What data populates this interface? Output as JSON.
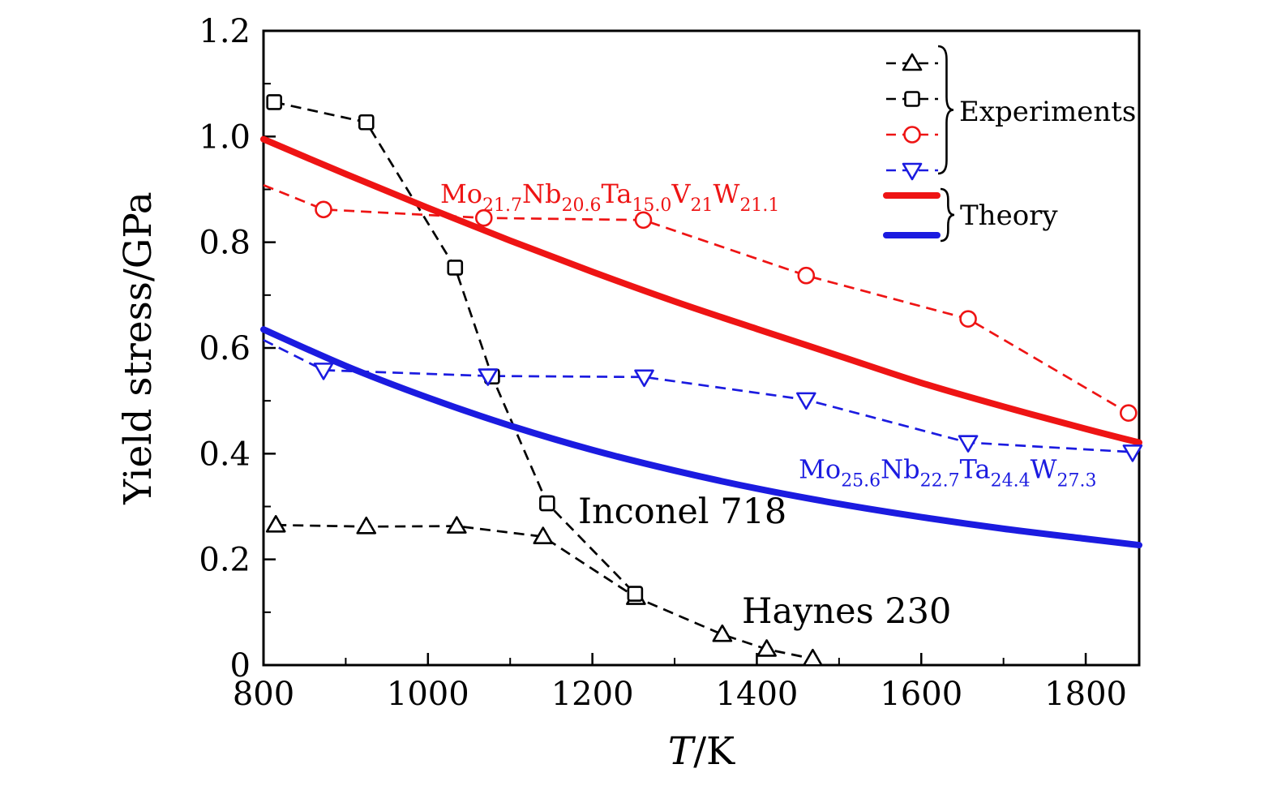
{
  "figure": {
    "background": "#ffffff",
    "axis_color": "#000000"
  },
  "chart_data": {
    "type": "line",
    "title": "",
    "xlabel_italic": "T",
    "xlabel_rest": "/K",
    "ylabel": "Yield stress/GPa",
    "xlim": [
      800,
      1865
    ],
    "ylim": [
      0,
      1.2
    ],
    "x_ticks": [
      800,
      1000,
      1200,
      1400,
      1600,
      1800
    ],
    "x_minor_step": 100,
    "y_ticks": [
      0,
      0.2,
      0.4,
      0.6,
      0.8,
      1.0,
      1.2
    ],
    "y_tick_labels": [
      "0",
      "0.2",
      "0.4",
      "0.6",
      "0.8",
      "1.0",
      "1.2"
    ],
    "y_minor_step": 0.1,
    "grid": false,
    "legend_position": "top-right",
    "colors": {
      "red": "#ee1414",
      "blue": "#1b1be0",
      "black": "#000000"
    },
    "series": [
      {
        "id": "haynes-230-experiment",
        "label": "Haynes 230",
        "role": "experiment",
        "color": "black",
        "line": "dashed",
        "marker": "triangle-up",
        "markers_from": 0,
        "points": [
          [
            815,
            0.265
          ],
          [
            925,
            0.262
          ],
          [
            1035,
            0.263
          ],
          [
            1140,
            0.243
          ],
          [
            1253,
            0.128
          ],
          [
            1358,
            0.058
          ],
          [
            1412,
            0.03
          ],
          [
            1468,
            0.012
          ]
        ]
      },
      {
        "id": "inconel-718-experiment",
        "label": "Inconel 718",
        "role": "experiment",
        "color": "black",
        "line": "dashed",
        "marker": "square",
        "markers_from": 0,
        "points": [
          [
            813,
            1.065
          ],
          [
            925,
            1.027
          ],
          [
            1033,
            0.752
          ],
          [
            1078,
            0.546
          ],
          [
            1145,
            0.306
          ],
          [
            1252,
            0.135
          ]
        ]
      },
      {
        "id": "monbtavw-experiment",
        "label": "Mo21.7Nb20.6Ta15.0V21W21.1 experiment",
        "role": "experiment",
        "color": "red",
        "line": "dashed",
        "marker": "circle",
        "markers_from": 1,
        "points": [
          [
            800,
            0.908
          ],
          [
            873,
            0.862
          ],
          [
            1068,
            0.846
          ],
          [
            1262,
            0.842
          ],
          [
            1460,
            0.737
          ],
          [
            1657,
            0.655
          ],
          [
            1852,
            0.477
          ]
        ]
      },
      {
        "id": "monbtaw-experiment",
        "label": "Mo25.6Nb22.7Ta24.4W27.3 experiment",
        "role": "experiment",
        "color": "blue",
        "line": "dashed",
        "marker": "triangle-down",
        "markers_from": 1,
        "points": [
          [
            800,
            0.615
          ],
          [
            873,
            0.558
          ],
          [
            1073,
            0.547
          ],
          [
            1263,
            0.545
          ],
          [
            1460,
            0.502
          ],
          [
            1657,
            0.421
          ],
          [
            1857,
            0.403
          ]
        ]
      },
      {
        "id": "monbtavw-theory",
        "label": "Mo21.7Nb20.6Ta15.0V21W21.1 theory",
        "role": "theory",
        "color": "red",
        "line": "solid",
        "points": [
          [
            800,
            0.995
          ],
          [
            900,
            0.929
          ],
          [
            1000,
            0.865
          ],
          [
            1100,
            0.803
          ],
          [
            1200,
            0.744
          ],
          [
            1300,
            0.688
          ],
          [
            1400,
            0.636
          ],
          [
            1500,
            0.585
          ],
          [
            1600,
            0.534
          ],
          [
            1700,
            0.489
          ],
          [
            1800,
            0.447
          ],
          [
            1865,
            0.421
          ]
        ]
      },
      {
        "id": "monbtaw-theory",
        "label": "Mo25.6Nb22.7Ta24.4W27.3 theory",
        "role": "theory",
        "color": "blue",
        "line": "solid",
        "points": [
          [
            800,
            0.635
          ],
          [
            900,
            0.566
          ],
          [
            1000,
            0.506
          ],
          [
            1100,
            0.453
          ],
          [
            1200,
            0.407
          ],
          [
            1300,
            0.368
          ],
          [
            1400,
            0.334
          ],
          [
            1500,
            0.305
          ],
          [
            1600,
            0.28
          ],
          [
            1700,
            0.258
          ],
          [
            1800,
            0.239
          ],
          [
            1865,
            0.227
          ]
        ]
      }
    ],
    "annotations": {
      "inconel_label": "Inconel 718",
      "haynes_label": "Haynes 230",
      "red_formula": {
        "id": "annotation-monbtavw-formula",
        "color": "red",
        "x": 1015,
        "y": 0.875,
        "segments": [
          [
            "Mo",
            "21.7"
          ],
          [
            "Nb",
            "20.6"
          ],
          [
            "Ta",
            "15.0"
          ],
          [
            "V",
            "21"
          ],
          [
            "W",
            "21.1"
          ]
        ]
      },
      "blue_formula": {
        "id": "annotation-monbtaw-formula",
        "color": "blue",
        "x": 1451,
        "y": 0.354,
        "segments": [
          [
            "Mo",
            "25.6"
          ],
          [
            "Nb",
            "22.7"
          ],
          [
            "Ta",
            "24.4"
          ],
          [
            "W",
            "27.3"
          ]
        ]
      }
    },
    "legend": {
      "experiments_label": "Experiments",
      "theory_label": "Theory",
      "experiment_rows": [
        {
          "marker": "triangle-up",
          "color": "black"
        },
        {
          "marker": "square",
          "color": "black"
        },
        {
          "marker": "circle",
          "color": "red"
        },
        {
          "marker": "triangle-down",
          "color": "blue"
        }
      ],
      "theory_rows": [
        {
          "color": "red"
        },
        {
          "color": "blue"
        }
      ]
    }
  }
}
